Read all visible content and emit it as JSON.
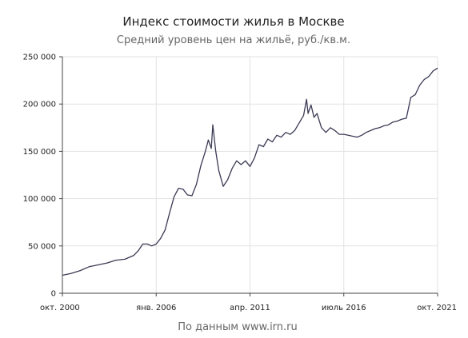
{
  "title": "Индекс стоимости жилья в Москве",
  "subtitle": "Средний уровень цен на жильё, руб./кв.м.",
  "source": "По данным www.irn.ru",
  "colors": {
    "line": "#3a3a55",
    "grid": "#e2e2e2",
    "axis": "#444444"
  },
  "chart_data": {
    "type": "line",
    "title": "Индекс стоимости жилья в Москве",
    "subtitle": "Средний уровень цен на жильё, руб./кв.м.",
    "xlabel": "",
    "ylabel": "",
    "ylim": [
      0,
      250000
    ],
    "xlim": [
      "2000-10",
      "2021-10"
    ],
    "grid": true,
    "yticks": [
      {
        "value": 0,
        "label": "0"
      },
      {
        "value": 50000,
        "label": "50 000"
      },
      {
        "value": 100000,
        "label": "100 000"
      },
      {
        "value": 150000,
        "label": "150 000"
      },
      {
        "value": 200000,
        "label": "200 000"
      },
      {
        "value": 250000,
        "label": "250 000"
      }
    ],
    "xticks": [
      {
        "date": "2000-10",
        "label": "окт. 2000"
      },
      {
        "date": "2006-01",
        "label": "янв. 2006"
      },
      {
        "date": "2011-04",
        "label": "апр. 2011"
      },
      {
        "date": "2016-07",
        "label": "июль 2016"
      },
      {
        "date": "2021-10",
        "label": "окт. 2021"
      }
    ],
    "series": [
      {
        "points": [
          [
            "2000-10",
            19000
          ],
          [
            "2001-04",
            21000
          ],
          [
            "2001-10",
            24000
          ],
          [
            "2002-04",
            28000
          ],
          [
            "2002-10",
            30000
          ],
          [
            "2003-04",
            32000
          ],
          [
            "2003-10",
            35000
          ],
          [
            "2004-04",
            36000
          ],
          [
            "2004-10",
            40000
          ],
          [
            "2005-01",
            45000
          ],
          [
            "2005-04",
            52000
          ],
          [
            "2005-07",
            52000
          ],
          [
            "2005-10",
            50000
          ],
          [
            "2006-01",
            52000
          ],
          [
            "2006-04",
            58000
          ],
          [
            "2006-07",
            67000
          ],
          [
            "2006-10",
            85000
          ],
          [
            "2007-01",
            102000
          ],
          [
            "2007-04",
            111000
          ],
          [
            "2007-07",
            110000
          ],
          [
            "2007-10",
            104000
          ],
          [
            "2008-01",
            103000
          ],
          [
            "2008-04",
            115000
          ],
          [
            "2008-07",
            135000
          ],
          [
            "2008-10",
            150000
          ],
          [
            "2008-12",
            162000
          ],
          [
            "2009-02",
            153000
          ],
          [
            "2009-03",
            178000
          ],
          [
            "2009-05",
            150000
          ],
          [
            "2009-07",
            130000
          ],
          [
            "2009-10",
            113000
          ],
          [
            "2010-01",
            120000
          ],
          [
            "2010-04",
            132000
          ],
          [
            "2010-07",
            140000
          ],
          [
            "2010-10",
            136000
          ],
          [
            "2011-01",
            140000
          ],
          [
            "2011-04",
            134000
          ],
          [
            "2011-07",
            143000
          ],
          [
            "2011-10",
            157000
          ],
          [
            "2012-01",
            155000
          ],
          [
            "2012-04",
            163000
          ],
          [
            "2012-07",
            160000
          ],
          [
            "2012-10",
            167000
          ],
          [
            "2013-01",
            165000
          ],
          [
            "2013-04",
            170000
          ],
          [
            "2013-07",
            168000
          ],
          [
            "2013-10",
            172000
          ],
          [
            "2014-01",
            180000
          ],
          [
            "2014-04",
            188000
          ],
          [
            "2014-06",
            205000
          ],
          [
            "2014-07",
            190000
          ],
          [
            "2014-09",
            199000
          ],
          [
            "2014-11",
            186000
          ],
          [
            "2015-01",
            190000
          ],
          [
            "2015-04",
            175000
          ],
          [
            "2015-07",
            170000
          ],
          [
            "2015-10",
            175000
          ],
          [
            "2016-01",
            172000
          ],
          [
            "2016-04",
            168000
          ],
          [
            "2016-07",
            168000
          ],
          [
            "2016-10",
            167000
          ],
          [
            "2017-01",
            166000
          ],
          [
            "2017-04",
            165000
          ],
          [
            "2017-07",
            167000
          ],
          [
            "2017-10",
            170000
          ],
          [
            "2018-01",
            172000
          ],
          [
            "2018-04",
            174000
          ],
          [
            "2018-07",
            175000
          ],
          [
            "2018-10",
            177000
          ],
          [
            "2019-01",
            178000
          ],
          [
            "2019-04",
            181000
          ],
          [
            "2019-07",
            182000
          ],
          [
            "2019-10",
            184000
          ],
          [
            "2020-01",
            185000
          ],
          [
            "2020-04",
            207000
          ],
          [
            "2020-07",
            210000
          ],
          [
            "2020-10",
            220000
          ],
          [
            "2021-01",
            226000
          ],
          [
            "2021-04",
            229000
          ],
          [
            "2021-07",
            235000
          ],
          [
            "2021-10",
            238000
          ]
        ]
      }
    ]
  }
}
